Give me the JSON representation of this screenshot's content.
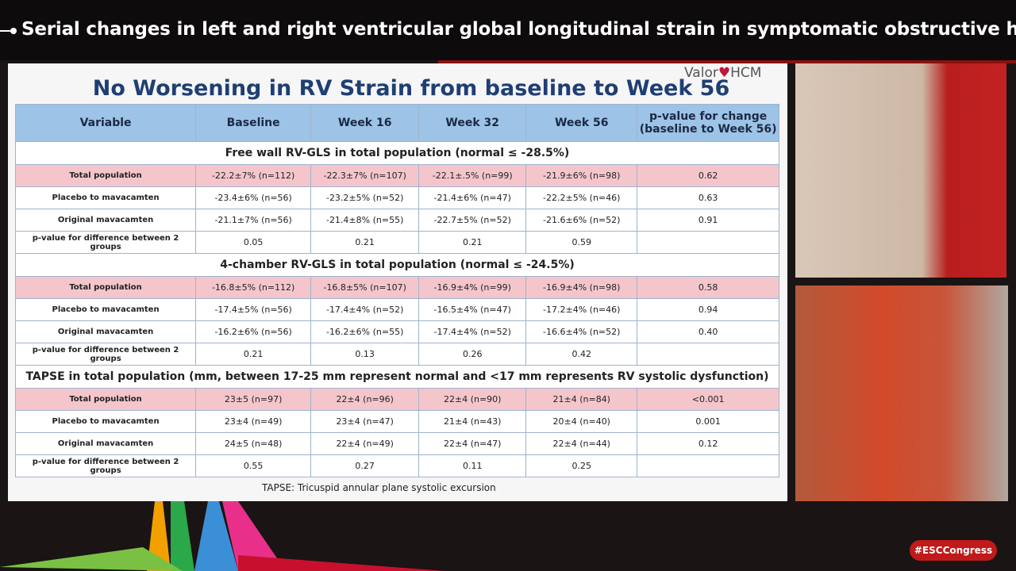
{
  "header": {
    "title": "Serial changes in left and right ventricular global longitudinal strain in symptomatic obstructive hy..."
  },
  "slide": {
    "title": "No Worsening in RV Strain from baseline to Week 56",
    "logo": [
      "Valor",
      "HCM"
    ],
    "table": {
      "columns": [
        "Variable",
        "Baseline",
        "Week 16",
        "Week 32",
        "Week 56",
        "p-value for change\n(baseline to Week 56)"
      ],
      "sections": [
        {
          "title": "Free wall RV-GLS in total population (normal ≤ -28.5%)",
          "rows": [
            [
              "Total population",
              "-22.2±7% (n=112)",
              "-22.3±7% (n=107)",
              "-22.1±.5% (n=99)",
              "-21.9±6% (n=98)",
              "0.62"
            ],
            [
              "Placebo to mavacamten",
              "-23.4±6% (n=56)",
              "-23.2±5% (n=52)",
              "-21.4±6% (n=47)",
              "-22.2±5% (n=46)",
              "0.63"
            ],
            [
              "Original mavacamten",
              "-21.1±7% (n=56)",
              "-21.4±8% (n=55)",
              "-22.7±5% (n=52)",
              "-21.6±6% (n=52)",
              "0.91"
            ],
            [
              "p-value for difference between 2 groups",
              "0.05",
              "0.21",
              "0.21",
              "0.59"
            ]
          ]
        },
        {
          "title": "4-chamber RV-GLS in total population (normal ≤ -24.5%)",
          "rows": [
            [
              "Total population",
              "-16.8±5% (n=112)",
              "-16.8±5% (n=107)",
              "-16.9±4% (n=99)",
              "-16.9±4% (n=98)",
              "0.58"
            ],
            [
              "Placebo to mavacamten",
              "-17.4±5% (n=56)",
              "-17.4±4% (n=52)",
              "-16.5±4% (n=47)",
              "-17.2±4% (n=46)",
              "0.94"
            ],
            [
              "Original mavacamten",
              "-16.2±6% (n=56)",
              "-16.2±6% (n=55)",
              "-17.4±4% (n=52)",
              "-16.6±4% (n=52)",
              "0.40"
            ],
            [
              "p-value for difference between 2 groups",
              "0.21",
              "0.13",
              "0.26",
              "0.42"
            ]
          ]
        },
        {
          "title": "TAPSE in total population (mm, between 17-25 mm represent normal and <17 mm represents RV systolic dysfunction)",
          "rows": [
            [
              "Total population",
              "23±5 (n=97)",
              "22±4 (n=96)",
              "22±4 (n=90)",
              "21±4 (n=84)",
              "<0.001"
            ],
            [
              "Placebo to mavacamten",
              "23±4 (n=49)",
              "23±4 (n=47)",
              "21±4 (n=43)",
              "20±4 (n=40)",
              "0.001"
            ],
            [
              "Original mavacamten",
              "24±5 (n=48)",
              "22±4 (n=49)",
              "22±4 (n=47)",
              "22±4 (n=44)",
              "0.12"
            ],
            [
              "p-value for difference between 2 groups",
              "0.55",
              "0.27",
              "0.11",
              "0.25"
            ]
          ]
        }
      ]
    },
    "footnote": "TAPSE: Tricuspid annular plane systolic excursion"
  },
  "badge": "#ESCCongress"
}
